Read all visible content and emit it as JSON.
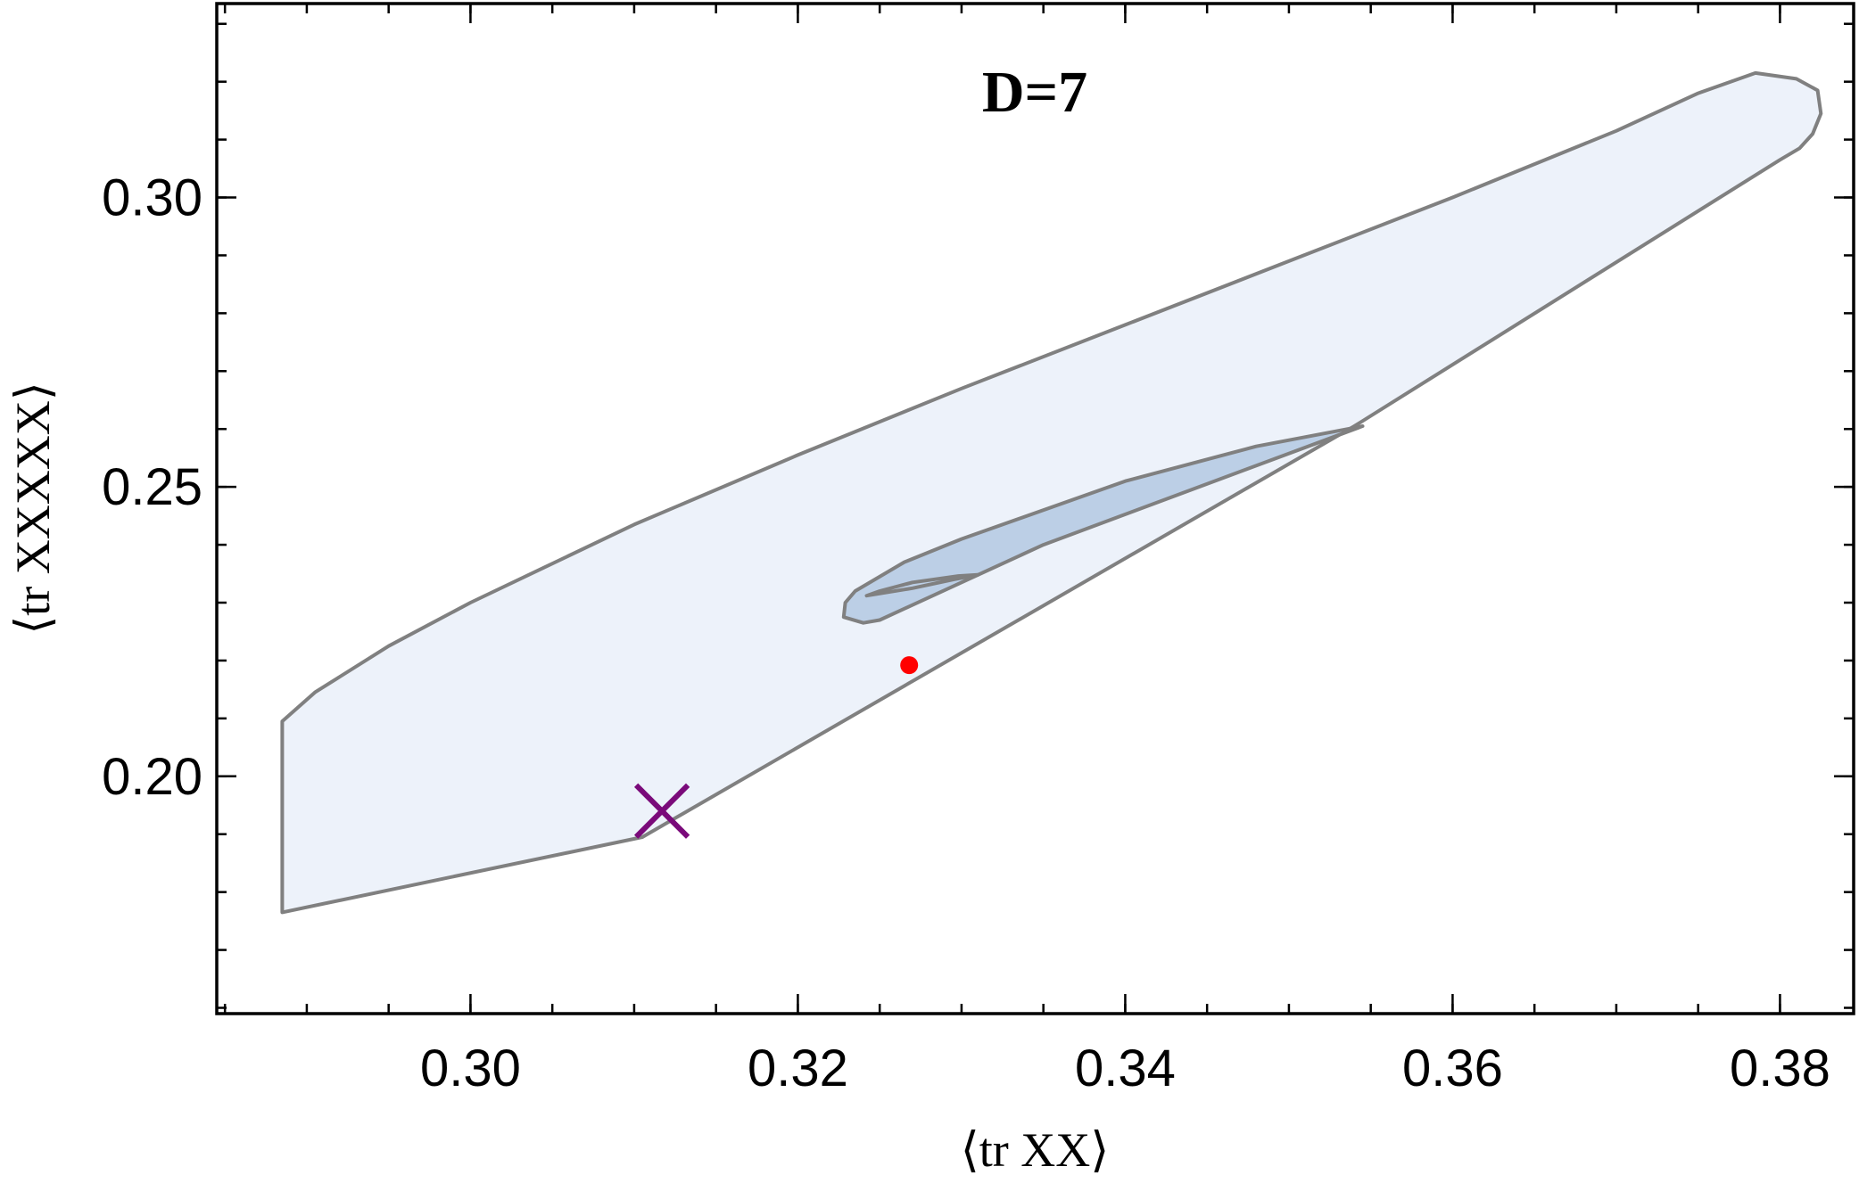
{
  "chart_data": {
    "type": "area",
    "title": "D=7",
    "xlabel": "⟨tr XX⟩",
    "ylabel": "⟨tr XXXXX⟩",
    "xlim": [
      0.2845,
      0.3845
    ],
    "ylim": [
      0.159,
      0.3335
    ],
    "x_ticks": [
      {
        "value": 0.3,
        "label": "0.30"
      },
      {
        "value": 0.32,
        "label": "0.32"
      },
      {
        "value": 0.34,
        "label": "0.34"
      },
      {
        "value": 0.36,
        "label": "0.36"
      },
      {
        "value": 0.38,
        "label": "0.38"
      }
    ],
    "y_ticks": [
      {
        "value": 0.2,
        "label": "0.20"
      },
      {
        "value": 0.25,
        "label": "0.25"
      },
      {
        "value": 0.3,
        "label": "0.30"
      }
    ],
    "x_minor_step": 0.005,
    "y_minor_step": 0.01,
    "grid": false,
    "colors": {
      "outer_fill": "#edf2fa",
      "inner_fill": "#bccfe6",
      "boundary": "#808080",
      "point": "#ff0000",
      "cross": "#7a0a7a"
    },
    "series": [
      {
        "points": [
          [
            0.2885,
            0.1765
          ],
          [
            0.2885,
            0.2095
          ],
          [
            0.2905,
            0.2145
          ],
          [
            0.295,
            0.2225
          ],
          [
            0.3,
            0.23
          ],
          [
            0.31,
            0.2435
          ],
          [
            0.32,
            0.2555
          ],
          [
            0.33,
            0.267
          ],
          [
            0.34,
            0.278
          ],
          [
            0.35,
            0.289
          ],
          [
            0.36,
            0.3
          ],
          [
            0.37,
            0.3115
          ],
          [
            0.375,
            0.318
          ],
          [
            0.3785,
            0.3215
          ],
          [
            0.381,
            0.3205
          ],
          [
            0.3823,
            0.3185
          ],
          [
            0.3825,
            0.3145
          ],
          [
            0.382,
            0.311
          ],
          [
            0.3812,
            0.3085
          ],
          [
            0.38,
            0.3065
          ],
          [
            0.354,
            0.2605
          ],
          [
            0.3105,
            0.1895
          ]
        ]
      },
      {
        "points": [
          [
            0.3545,
            0.2605
          ],
          [
            0.348,
            0.257
          ],
          [
            0.34,
            0.251
          ],
          [
            0.33,
            0.241
          ],
          [
            0.3265,
            0.237
          ],
          [
            0.3235,
            0.232
          ],
          [
            0.3229,
            0.23
          ],
          [
            0.3228,
            0.2275
          ],
          [
            0.324,
            0.2265
          ],
          [
            0.325,
            0.227
          ],
          [
            0.335,
            0.24
          ]
        ]
      },
      {
        "points": [
          [
            0.3242,
            0.2312
          ],
          [
            0.327,
            0.2325
          ],
          [
            0.3295,
            0.234
          ],
          [
            0.331,
            0.2348
          ],
          [
            0.3298,
            0.2346
          ],
          [
            0.327,
            0.2335
          ],
          [
            0.325,
            0.232
          ]
        ]
      }
    ],
    "markers": [
      {
        "shape": "dot",
        "x": 0.3268,
        "y": 0.2192
      },
      {
        "shape": "cross",
        "x": 0.3117,
        "y": 0.194
      }
    ]
  }
}
